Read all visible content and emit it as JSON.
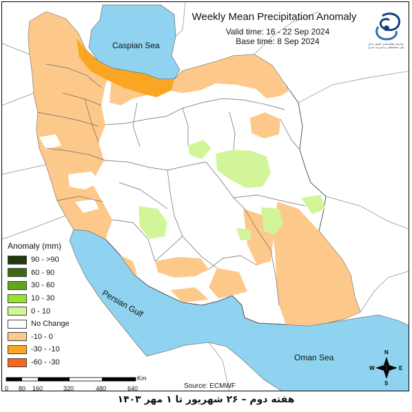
{
  "map": {
    "title": "Weekly Mean Precipitation Anomaly",
    "valid_time": "Valid time: 16 - 22 Sep 2024",
    "base_time": "Base time: 8 Sep 2024",
    "source": "Source: ECMWF",
    "caption": "هفته دوم – ۲۶ شهریور تا ۱ مهر ۱۴۰۳",
    "seas": {
      "caspian": "Caspian Sea",
      "persian_gulf": "Persian Gulf",
      "oman": "Oman Sea"
    },
    "legend": {
      "title": "Anomaly (mm)",
      "items": [
        {
          "label": "90 - >90",
          "color": "#1f3d0c"
        },
        {
          "label": "60 - 90",
          "color": "#3c6a12"
        },
        {
          "label": "30 - 60",
          "color": "#62a51a"
        },
        {
          "label": "10 - 30",
          "color": "#96e22c"
        },
        {
          "label": "0 - 10",
          "color": "#d2f59a"
        },
        {
          "label": "No Change",
          "color": "#ffffff"
        },
        {
          "label": "-10 - 0",
          "color": "#fdc98a"
        },
        {
          "label": "-30 - -10",
          "color": "#fba623"
        },
        {
          "label": "-60 - -30",
          "color": "#f7661d"
        }
      ]
    },
    "scale": {
      "unit": "Km",
      "ticks": [
        "0",
        "80",
        "160",
        "320",
        "480",
        "640"
      ]
    },
    "compass": {
      "n": "N",
      "s": "S",
      "e": "E",
      "w": "W"
    },
    "logo_text": "سازمان هواشناسی کشور\nمرکز ملی خشکسالی و مدیریت بحران"
  }
}
